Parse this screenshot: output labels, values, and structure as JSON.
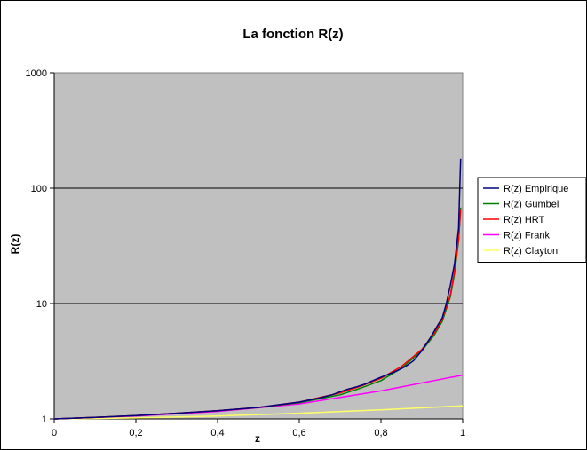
{
  "chart_data": {
    "type": "line",
    "title": "La fonction R(z)",
    "xlabel": "z",
    "ylabel": "R(z)",
    "xlim": [
      0,
      1
    ],
    "ylim": [
      1,
      1000
    ],
    "y_scale": "log",
    "grid": true,
    "plot_background": "#c0c0c0",
    "legend_position": "right",
    "x_ticks": [
      "0",
      "0,2",
      "0,4",
      "0,6",
      "0,8",
      "1"
    ],
    "x_tick_values": [
      0,
      0.2,
      0.4,
      0.6,
      0.8,
      1
    ],
    "y_ticks": [
      "1",
      "10",
      "100",
      "1000"
    ],
    "y_tick_values": [
      1,
      10,
      100,
      1000
    ],
    "series": [
      {
        "name": "R(z) Empirique",
        "color": "#000080",
        "x": [
          0,
          0.1,
          0.2,
          0.3,
          0.4,
          0.5,
          0.6,
          0.65,
          0.68,
          0.7,
          0.72,
          0.74,
          0.76,
          0.78,
          0.8,
          0.82,
          0.84,
          0.86,
          0.88,
          0.9,
          0.92,
          0.94,
          0.95,
          0.96,
          0.97,
          0.98,
          0.99,
          0.995
        ],
        "values": [
          1,
          1.03,
          1.07,
          1.12,
          1.18,
          1.26,
          1.4,
          1.52,
          1.62,
          1.72,
          1.82,
          1.9,
          2.0,
          2.15,
          2.3,
          2.45,
          2.62,
          2.85,
          3.2,
          3.9,
          5.0,
          6.6,
          7.5,
          10.0,
          14.5,
          22,
          45,
          180
        ]
      },
      {
        "name": "R(z) Gumbel",
        "color": "#008000",
        "x": [
          0,
          0.1,
          0.2,
          0.3,
          0.4,
          0.5,
          0.6,
          0.7,
          0.75,
          0.8,
          0.85,
          0.9,
          0.93,
          0.95,
          0.97,
          0.98,
          0.99,
          0.995
        ],
        "values": [
          1,
          1.03,
          1.07,
          1.12,
          1.18,
          1.26,
          1.38,
          1.62,
          1.85,
          2.15,
          2.75,
          3.9,
          5.3,
          7.0,
          11.5,
          18,
          35,
          68
        ]
      },
      {
        "name": "R(z) HRT",
        "color": "#ff0000",
        "x": [
          0,
          0.1,
          0.2,
          0.3,
          0.4,
          0.5,
          0.6,
          0.7,
          0.75,
          0.8,
          0.85,
          0.9,
          0.93,
          0.95,
          0.97,
          0.98,
          0.99,
          0.995
        ],
        "values": [
          1,
          1.03,
          1.07,
          1.12,
          1.18,
          1.26,
          1.4,
          1.68,
          1.92,
          2.25,
          2.85,
          4.0,
          5.5,
          7.3,
          12,
          19,
          36,
          65
        ]
      },
      {
        "name": "R(z) Frank",
        "color": "#ff00ff",
        "x": [
          0,
          0.2,
          0.4,
          0.6,
          0.8,
          1
        ],
        "values": [
          1,
          1.06,
          1.16,
          1.35,
          1.75,
          2.4
        ]
      },
      {
        "name": "R(z) Clayton",
        "color": "#ffff66",
        "x": [
          0,
          0.2,
          0.4,
          0.6,
          0.8,
          1
        ],
        "values": [
          1,
          1.02,
          1.06,
          1.12,
          1.2,
          1.3
        ]
      }
    ]
  }
}
